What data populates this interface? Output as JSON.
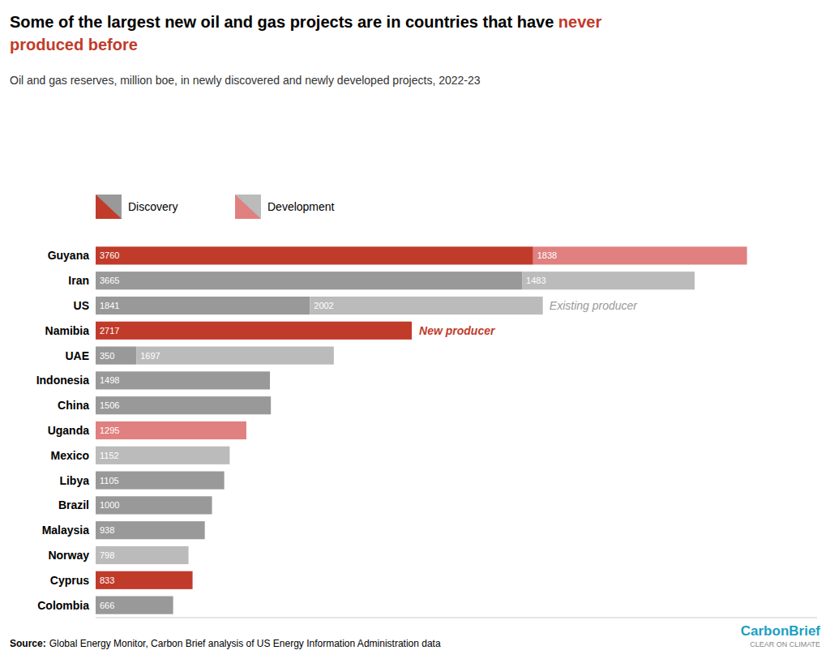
{
  "chart_data": {
    "type": "bar",
    "orientation": "horizontal",
    "stacked": true,
    "data_labels": true,
    "grid": false,
    "tick_labels": "y",
    "title": [
      [
        {
          "text": "Some of the largest new oil and gas projects are in countries that have ",
          "color": "#000000"
        },
        {
          "text": "never",
          "color": "#C13B2A"
        }
      ],
      [
        {
          "text": "produced before",
          "color": "#C13B2A"
        }
      ]
    ],
    "subtitle": "Oil and gas reserves, million boe, in newly discovered and newly developed projects, 2022-23",
    "categories": [
      "Guyana",
      "Iran",
      "US",
      "Namibia",
      "UAE",
      "Indonesia",
      "China",
      "Uganda",
      "Mexico",
      "Libya",
      "Brazil",
      "Malaysia",
      "Norway",
      "Cyprus",
      "Colombia"
    ],
    "series": [
      {
        "name": "Discovery",
        "values": [
          3760,
          3665,
          1841,
          2717,
          350,
          1498,
          1506,
          0,
          0,
          1105,
          1000,
          938,
          0,
          833,
          666
        ],
        "colors": [
          "#C13B2A",
          "#999999",
          "#999999",
          "#C13B2A",
          "#999999",
          "#999999",
          "#999999",
          "#C13B2A",
          "#999999",
          "#999999",
          "#999999",
          "#999999",
          "#999999",
          "#C13B2A",
          "#999999"
        ]
      },
      {
        "name": "Development",
        "values": [
          1838,
          1483,
          2002,
          0,
          1697,
          0,
          0,
          1295,
          1152,
          0,
          0,
          0,
          798,
          0,
          0
        ],
        "colors": [
          "#E08080",
          "#BBBBBB",
          "#BBBBBB",
          "#E08080",
          "#BBBBBB",
          "#BBBBBB",
          "#BBBBBB",
          "#E08080",
          "#BBBBBB",
          "#BBBBBB",
          "#BBBBBB",
          "#BBBBBB",
          "#BBBBBB",
          "#E08080",
          "#BBBBBB"
        ]
      }
    ],
    "xlim": [
      0,
      6200
    ],
    "annotations": [
      {
        "text": "Existing producer",
        "x": 3900,
        "category": "US",
        "color": "#999999"
      },
      {
        "text": "New producer",
        "x": 2780,
        "category": "Namibia",
        "color": "#C13B2A"
      }
    ],
    "source_label": "Source:",
    "source": "Global Energy Monitor, Carbon Brief analysis of US Energy Information Administration data",
    "brand": "CarbonBrief",
    "brand_tagline": "CLEAR ON CLIMATE",
    "brand_color": "#1BA0C3"
  }
}
